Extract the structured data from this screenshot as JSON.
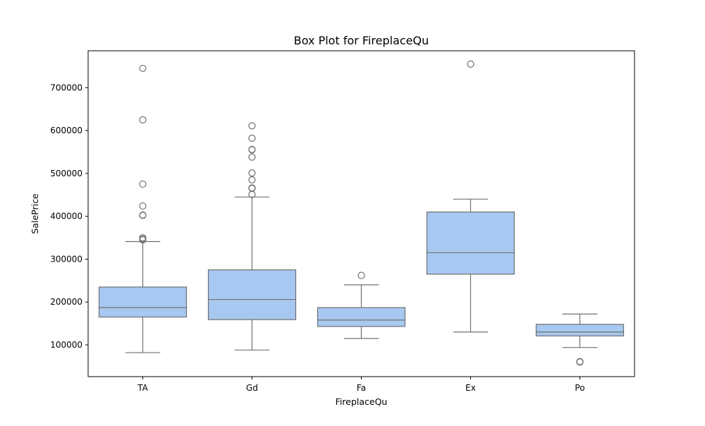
{
  "chart_data": {
    "type": "box",
    "title": "Box Plot for FireplaceQu",
    "xlabel": "FireplaceQu",
    "ylabel": "SalePrice",
    "ylim": [
      26000,
      786000
    ],
    "y_ticks": [
      100000,
      200000,
      300000,
      400000,
      500000,
      600000,
      700000
    ],
    "y_tick_labels": [
      "100000",
      "200000",
      "300000",
      "400000",
      "500000",
      "600000",
      "700000"
    ],
    "grid": false,
    "categories": [
      "TA",
      "Gd",
      "Fa",
      "Ex",
      "Po"
    ],
    "boxes": [
      {
        "category": "TA",
        "whisker_low": 82000,
        "q1": 165000,
        "median": 187000,
        "q3": 235000,
        "whisker_high": 341000,
        "outliers": [
          745000,
          625000,
          475000,
          424000,
          403000,
          402000,
          350000,
          347000,
          345000
        ]
      },
      {
        "category": "Gd",
        "whisker_low": 88000,
        "q1": 159000,
        "median": 206000,
        "q3": 275000,
        "whisker_high": 445000,
        "outliers": [
          611000,
          582000,
          556000,
          555000,
          538000,
          501000,
          485000,
          466000,
          465000,
          451000
        ]
      },
      {
        "category": "Fa",
        "whisker_low": 115000,
        "q1": 143000,
        "median": 158000,
        "q3": 187000,
        "whisker_high": 240000,
        "outliers": [
          262000
        ]
      },
      {
        "category": "Ex",
        "whisker_low": 130000,
        "q1": 265000,
        "median": 315000,
        "q3": 410000,
        "whisker_high": 440000,
        "outliers": [
          755000
        ]
      },
      {
        "category": "Po",
        "whisker_low": 94000,
        "q1": 121000,
        "median": 130000,
        "q3": 148000,
        "whisker_high": 172000,
        "outliers": [
          61000,
          60000
        ]
      }
    ],
    "colors": {
      "box_fill": "#a7c8f0",
      "edge": "#707070",
      "axis": "#000000"
    }
  }
}
